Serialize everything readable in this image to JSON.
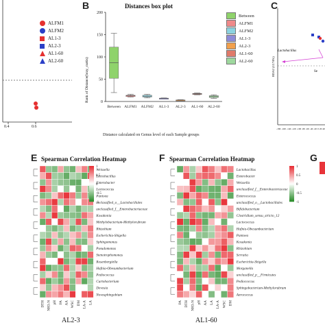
{
  "panels": {
    "B": "B",
    "C": "C",
    "E": "E",
    "F": "F",
    "G": "G"
  },
  "panelA": {
    "xticks": [
      "0.4",
      "0.6"
    ],
    "legend": [
      {
        "label": "ALFM1",
        "color": "#e53030",
        "shape": "circle"
      },
      {
        "label": "ALFM2",
        "color": "#2b3fc7",
        "shape": "circle"
      },
      {
        "label": "AL1-3",
        "color": "#e53030",
        "shape": "square"
      },
      {
        "label": "AL2-3",
        "color": "#2b3fc7",
        "shape": "square"
      },
      {
        "label": "AL1-60",
        "color": "#e53030",
        "shape": "triangle"
      },
      {
        "label": "AL2-60",
        "color": "#2b3fc7",
        "shape": "triangle"
      }
    ]
  },
  "chart_data": [
    {
      "type": "box",
      "title": "Distances box plot",
      "xlabel": "Distance calculated on Genus level of each Sample groups",
      "ylabel": "Rank of Distance(bray_curtis)",
      "ylim": [
        0,
        200
      ],
      "yticks": [
        0,
        50,
        100,
        150,
        200
      ],
      "categories": [
        "Between",
        "ALFM1",
        "ALFM2",
        "AL1-3",
        "AL2-3",
        "AL1-60",
        "AL2-60"
      ],
      "colors": [
        "#8fd36b",
        "#f08a8a",
        "#8cd3e0",
        "#8d8bd8",
        "#f2a04c",
        "#e07a6a",
        "#9ed89e"
      ],
      "boxes": [
        {
          "min": 20,
          "q1": 52,
          "median": 87,
          "q3": 122,
          "max": 153
        },
        {
          "min": 10,
          "q1": 11,
          "median": 13,
          "q3": 14,
          "max": 16
        },
        {
          "min": 8,
          "q1": 10,
          "median": 12,
          "q3": 14,
          "max": 16
        },
        {
          "min": 6,
          "q1": 6.5,
          "median": 7,
          "q3": 7.5,
          "max": 8
        },
        {
          "min": 2,
          "q1": 2.5,
          "median": 3,
          "q3": 3.5,
          "max": 4
        },
        {
          "min": 15,
          "q1": 16,
          "median": 17,
          "q3": 18,
          "max": 19
        },
        {
          "min": 7,
          "q1": 9,
          "median": 11,
          "q3": 13,
          "max": 15
        }
      ],
      "legend": [
        "Between",
        "ALFM1",
        "ALFM2",
        "AL1-3",
        "AL2-3",
        "AL1-60",
        "AL2-60"
      ]
    },
    {
      "type": "heatmap",
      "title": "Spearman Correlation Heatmap",
      "sample": "AL2-3",
      "rows": [
        "Weissella",
        "Lactobacillus",
        "Enterobacter",
        "Lactococcus",
        "Pantoea",
        "unclassified_o__Lactobacillales",
        "unclassified_f__Enterobacteriaceae",
        "Kosakonia",
        "Methylobacterium-Methylorubrum",
        "Rhizobium",
        "Escherichia-Shigella",
        "Sphingomonas",
        "Pseudomonas",
        "Stenotrophomonas",
        "Rosenbergiella",
        "Hafnia-Obesumbacterium",
        "Pediococcus",
        "Curtobacterium",
        "Devosia",
        "Novosphingobium"
      ],
      "cols": [
        "DTH",
        "NH3-N",
        "pH",
        "PA",
        "AA",
        "WSC",
        "DM",
        "LA-A",
        "LA"
      ],
      "scale": [
        "1",
        "0.5",
        "0",
        "-0.5",
        "-1"
      ]
    },
    {
      "type": "heatmap",
      "title": "Spearman Correlation Heatmap",
      "sample": "AL1-60",
      "rows": [
        "Lactobacillus",
        "Enterobacter",
        "Weissella",
        "unclassified_f__Enterobacteriaceae",
        "Enterococcus",
        "unclassified_o__Lactobacillales",
        "Bifidobacterium",
        "Clostridium_sensu_stricto_12",
        "Lactococcus",
        "Hafnia-Obesumbacterium",
        "Pantoea",
        "Kosakonia",
        "Rhizobium",
        "Serratia",
        "Escherichia-Shigella",
        "Morganella",
        "unclassified_p__Firmicutes",
        "Pediococcus",
        "Sphingobacterium-Methylorubrum",
        "Aerococcus"
      ],
      "cols": [
        "PA",
        "DTH",
        "NH3-N",
        "pH",
        "AA",
        "LA",
        "LA-A",
        "WSC",
        "DM"
      ],
      "scale": [
        "1",
        "0.5",
        "0",
        "-0.5",
        "-1"
      ]
    }
  ],
  "panelC": {
    "label_taxon": "Lactobacillus",
    "ylabel": "RDA2 (12.74%)",
    "xticks": [
      "-180",
      "-160",
      "-140",
      "-120",
      "-100",
      "-80",
      "-60",
      "-40",
      "-20",
      "0",
      "20",
      "40"
    ],
    "side_label": "Se"
  },
  "colors": {
    "heat_red": "#e8343a",
    "heat_green": "#2f8f2f",
    "heat_white": "#ffffff"
  }
}
